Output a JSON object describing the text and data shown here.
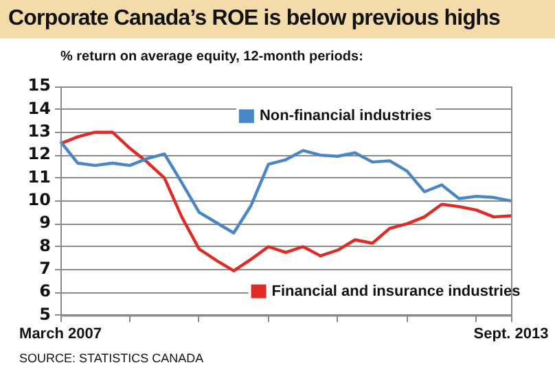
{
  "chart_data": {
    "type": "line",
    "title": "Corporate Canada’s ROE is below previous highs",
    "subtitle": "% return on average equity, 12-month periods:",
    "categories": [
      "March 2007",
      null,
      null,
      null,
      null,
      null,
      null,
      null,
      null,
      null,
      null,
      null,
      null,
      null,
      null,
      null,
      null,
      null,
      null,
      null,
      null,
      null,
      null,
      null,
      null,
      null,
      "Sept. 2013"
    ],
    "series": [
      {
        "name": "Non-financial industries",
        "color": "#4a86c5",
        "values": [
          12.6,
          11.65,
          11.55,
          11.65,
          11.55,
          11.85,
          12.05,
          10.8,
          9.5,
          9.05,
          8.6,
          9.8,
          11.6,
          11.8,
          12.2,
          12.0,
          11.95,
          12.1,
          11.7,
          11.75,
          11.3,
          10.4,
          10.7,
          10.1,
          10.2,
          10.15,
          10.0
        ]
      },
      {
        "name": "Financial and insurance industries",
        "color": "#e02a26",
        "values": [
          12.5,
          12.8,
          13.0,
          13.0,
          12.3,
          11.7,
          11.0,
          9.3,
          7.9,
          7.4,
          6.95,
          7.45,
          8.0,
          7.75,
          8.0,
          7.6,
          7.85,
          8.3,
          8.15,
          8.8,
          9.0,
          9.3,
          9.85,
          9.75,
          9.6,
          9.3,
          9.35
        ]
      }
    ],
    "ylim": [
      5,
      15
    ],
    "yticks": [
      5,
      6,
      7,
      8,
      9,
      10,
      11,
      12,
      13,
      14,
      15
    ],
    "grid": "y",
    "legend": "right",
    "marker": "none",
    "line_style": "solid",
    "annotations": [
      "SOURCE: STATISTICS CANADA"
    ]
  }
}
